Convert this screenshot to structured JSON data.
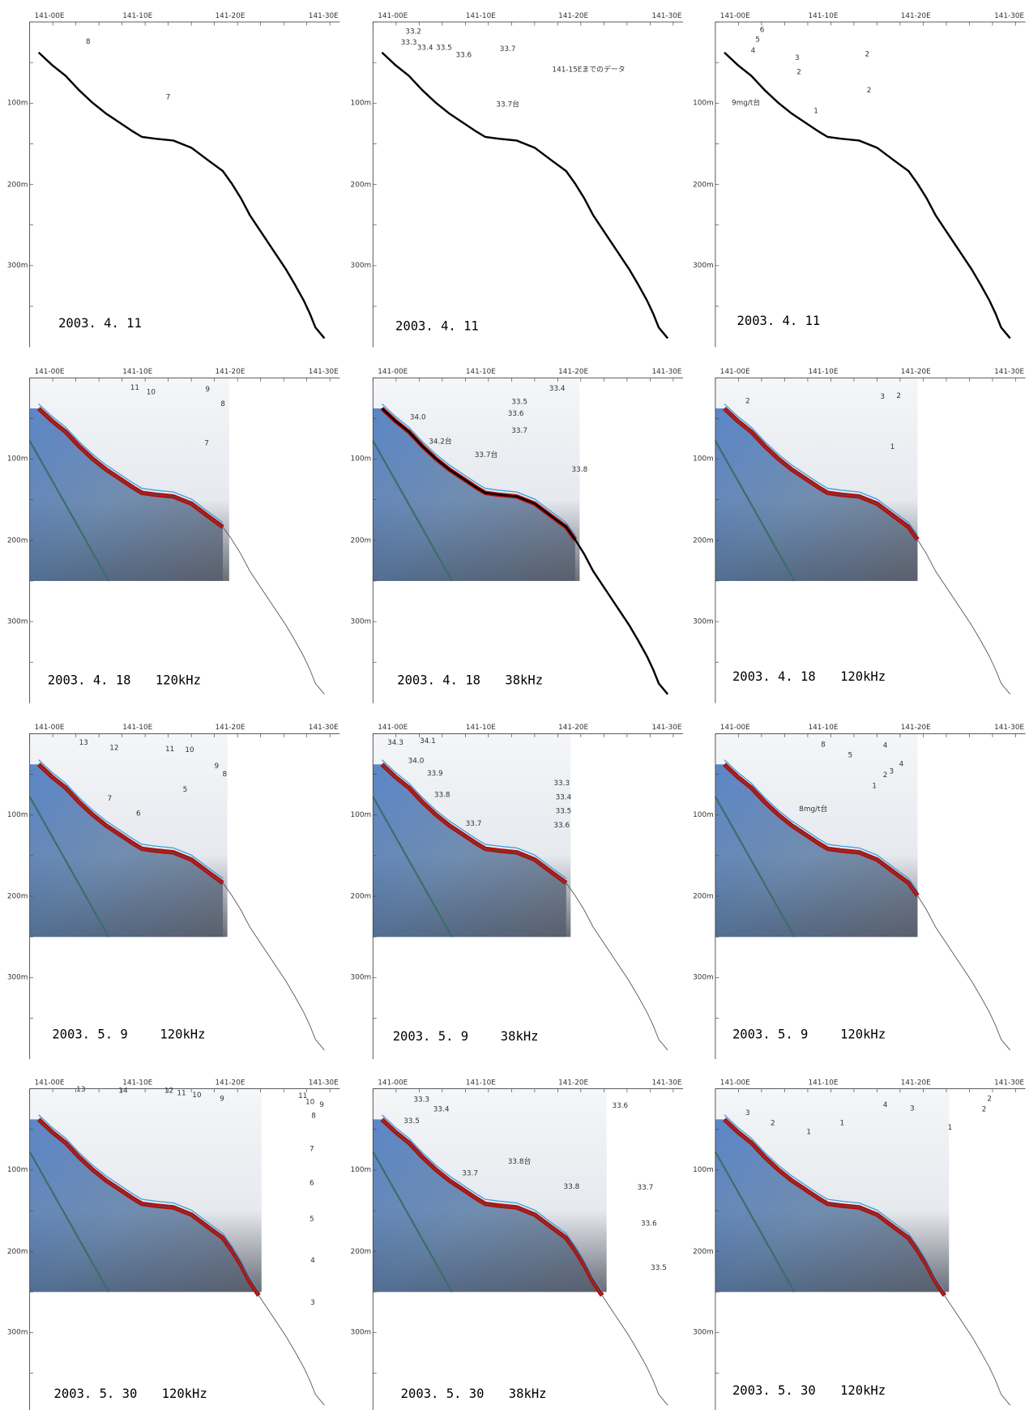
{
  "axes": {
    "x_labels": [
      "141-00E",
      "141-10E",
      "141-20E",
      "141-30E"
    ],
    "y_labels": [
      "100m",
      "200m",
      "300m"
    ]
  },
  "panels": [
    {
      "date": "2003. 4. 11",
      "labels": [
        "8",
        "7"
      ]
    },
    {
      "date": "2003. 4. 11",
      "labels": [
        "33.2",
        "33.3",
        "33.4",
        "33.5",
        "33.6",
        "33.7",
        "141-15Eまでのデータ",
        "33.7台"
      ]
    },
    {
      "date": "2003. 4. 11",
      "labels": [
        "6",
        "5",
        "4",
        "3",
        "2",
        "2",
        "2",
        "1",
        "9mg/t台"
      ]
    },
    {
      "date": "2003. 4. 18",
      "frequency": "120kHz",
      "labels": [
        "11",
        "10",
        "9",
        "8",
        "7"
      ]
    },
    {
      "date": "2003. 4. 18",
      "frequency": "38kHz",
      "labels": [
        "33.4",
        "33.5",
        "33.6",
        "33.7",
        "34.0",
        "34.2台",
        "33.7台",
        "33.8"
      ]
    },
    {
      "date": "2003. 4. 18",
      "frequency": "120kHz",
      "labels": [
        "2",
        "3",
        "2",
        "1"
      ]
    },
    {
      "date": "2003. 5. 9",
      "frequency": "120kHz",
      "labels": [
        "13",
        "12",
        "11",
        "10",
        "9",
        "8",
        "7",
        "6",
        "5"
      ]
    },
    {
      "date": "2003. 5. 9",
      "frequency": "38kHz",
      "labels": [
        "34.3",
        "34.1",
        "34.0",
        "33.9",
        "33.8",
        "33.7",
        "33.3",
        "33.4",
        "33.5",
        "33.6"
      ]
    },
    {
      "date": "2003. 5. 9",
      "frequency": "120kHz",
      "labels": [
        "8",
        "4",
        "5",
        "4",
        "3",
        "2",
        "1",
        "8mg/t台"
      ]
    },
    {
      "date": "2003. 5. 30",
      "frequency": "120kHz",
      "labels": [
        "13",
        "14",
        "12",
        "11",
        "10",
        "9",
        "11",
        "10",
        "9",
        "8",
        "7",
        "6",
        "5",
        "4",
        "3"
      ]
    },
    {
      "date": "2003. 5. 30",
      "frequency": "38kHz",
      "labels": [
        "33.3",
        "33.4",
        "33.5",
        "33.6",
        "33.8台",
        "33.7",
        "33.8",
        "33.7",
        "33.6",
        "33.5"
      ]
    },
    {
      "date": "2003. 5. 30",
      "frequency": "120kHz",
      "labels": [
        "4",
        "3",
        "2",
        "2",
        "3",
        "2",
        "1",
        "1",
        "1"
      ]
    }
  ]
}
